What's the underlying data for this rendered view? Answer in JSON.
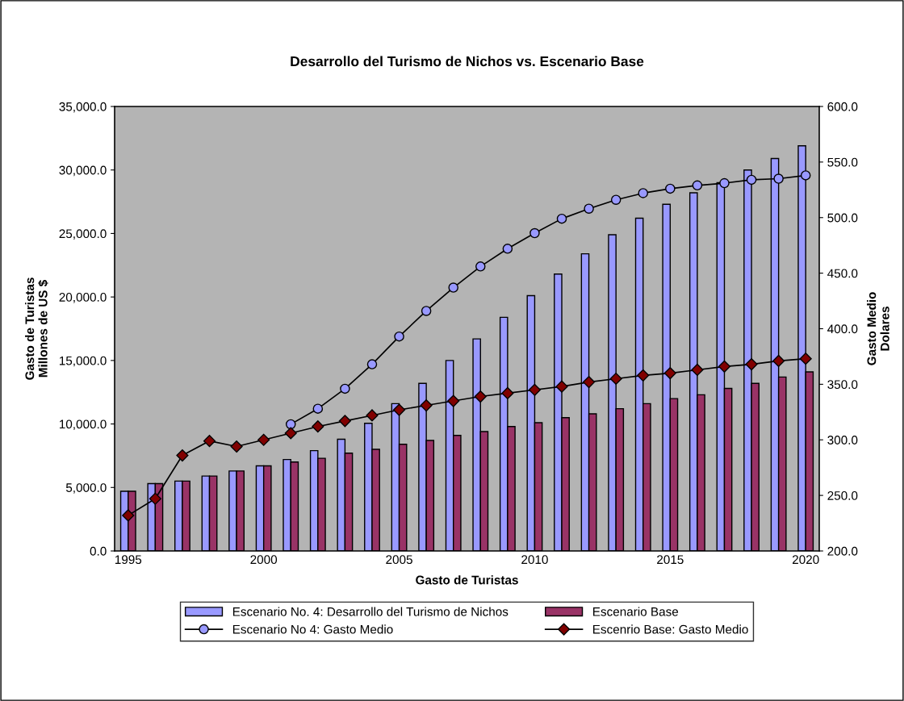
{
  "chart_data": {
    "type": "bar",
    "title": "Desarrollo del Turismo de Nichos vs. Escenario Base",
    "xlabel": "Gasto de Turistas",
    "ylabel": "Gasto de Turistas\nMillones de US $",
    "y2label": "Gasto Medio\nDolares",
    "categories": [
      "1995",
      null,
      null,
      null,
      null,
      "2000",
      null,
      null,
      null,
      null,
      "2005",
      null,
      null,
      null,
      null,
      "2010",
      null,
      null,
      null,
      null,
      "2015",
      null,
      null,
      null,
      null,
      "2020"
    ],
    "series": [
      {
        "name": "Escenario No. 4: Desarrollo del Turismo de Nichos",
        "color": "#9999ff",
        "values": [
          4700,
          5300,
          5500,
          5900,
          6300,
          6700,
          7200,
          7900,
          8800,
          10050,
          11600,
          13200,
          15000,
          16700,
          18400,
          20100,
          21800,
          23400,
          24900,
          26200,
          27300,
          28200,
          29000,
          30000,
          30900,
          31900
        ]
      },
      {
        "name": "Escenario Base",
        "color": "#993366",
        "values": [
          4700,
          5300,
          5500,
          5900,
          6300,
          6700,
          7000,
          7300,
          7700,
          8000,
          8400,
          8700,
          9100,
          9400,
          9800,
          10100,
          10500,
          10800,
          11200,
          11600,
          12000,
          12300,
          12800,
          13200,
          13700,
          14100
        ]
      },
      {
        "name": "Escenario No 4: Gasto Medio",
        "type": "line",
        "axis": "y2",
        "marker": "circle",
        "color": "#9999ff",
        "values": [
          null,
          null,
          null,
          null,
          null,
          null,
          314,
          328,
          346,
          368,
          393,
          416,
          437,
          456,
          472,
          486,
          499,
          508,
          516,
          522,
          526,
          529,
          531,
          534,
          535,
          538
        ]
      },
      {
        "name": "Escenrio Base: Gasto Medio",
        "type": "line",
        "axis": "y2",
        "marker": "diamond",
        "color": "#800000",
        "values": [
          232,
          247,
          286,
          299,
          294,
          300,
          306,
          312,
          317,
          322,
          327,
          331,
          335,
          339,
          342,
          345,
          348,
          352,
          355,
          358,
          360,
          363,
          366,
          368,
          371,
          373
        ]
      }
    ],
    "ylim": [
      0,
      35000
    ],
    "yticks": [
      {
        "value": 0,
        "label": "0.0"
      },
      {
        "value": 5000,
        "label": "5,000.0"
      },
      {
        "value": 10000,
        "label": "10,000.0"
      },
      {
        "value": 15000,
        "label": "15,000.0"
      },
      {
        "value": 20000,
        "label": "20,000.0"
      },
      {
        "value": 25000,
        "label": "25,000.0"
      },
      {
        "value": 30000,
        "label": "30,000.0"
      },
      {
        "value": 35000,
        "label": "35,000.0"
      }
    ],
    "y2lim": [
      200,
      600
    ],
    "y2ticks": [
      {
        "value": 200,
        "label": "200.0"
      },
      {
        "value": 250,
        "label": "250.0"
      },
      {
        "value": 300,
        "label": "300.0"
      },
      {
        "value": 350,
        "label": "350.0"
      },
      {
        "value": 400,
        "label": "400.0"
      },
      {
        "value": 450,
        "label": "450.0"
      },
      {
        "value": 500,
        "label": "500.0"
      },
      {
        "value": 550,
        "label": "550.0"
      },
      {
        "value": 600,
        "label": "600.0"
      }
    ],
    "grid": false,
    "legend": "bottom"
  }
}
